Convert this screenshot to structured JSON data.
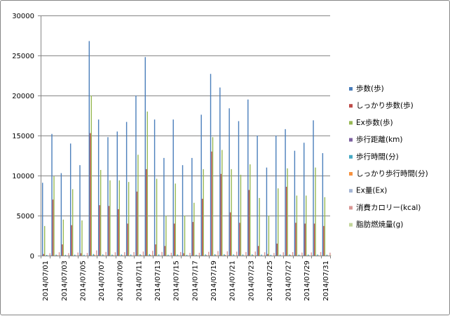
{
  "chart_data": {
    "type": "bar",
    "ylim": [
      0,
      30000
    ],
    "yticks": [
      0,
      5000,
      10000,
      15000,
      20000,
      25000,
      30000
    ],
    "grid": true,
    "legend_position": "right",
    "categories": [
      "2014/07/01",
      "2014/07/02",
      "2014/07/03",
      "2014/07/04",
      "2014/07/05",
      "2014/07/06",
      "2014/07/07",
      "2014/07/08",
      "2014/07/09",
      "2014/07/10",
      "2014/07/11",
      "2014/07/12",
      "2014/07/13",
      "2014/07/14",
      "2014/07/15",
      "2014/07/16",
      "2014/07/17",
      "2014/07/18",
      "2014/07/19",
      "2014/07/20",
      "2014/07/21",
      "2014/07/22",
      "2014/07/23",
      "2014/07/24",
      "2014/07/25",
      "2014/07/26",
      "2014/07/27",
      "2014/07/28",
      "2014/07/29",
      "2014/07/30",
      "2014/07/31"
    ],
    "xtick_labels": [
      "2014/07/01",
      "2014/07/03",
      "2014/07/05",
      "2014/07/07",
      "2014/07/09",
      "2014/07/11",
      "2014/07/13",
      "2014/07/15",
      "2014/07/17",
      "2014/07/19",
      "2014/07/21",
      "2014/07/23",
      "2014/07/25",
      "2014/07/27",
      "2014/07/29",
      "2014/07/31"
    ],
    "series": [
      {
        "name": "歩数(歩)",
        "color": "#4a7ebb",
        "values": [
          9100,
          15200,
          10300,
          14000,
          11300,
          26800,
          17000,
          14800,
          15500,
          16700,
          20000,
          24800,
          17000,
          12200,
          17000,
          11300,
          12200,
          17600,
          22700,
          21000,
          18400,
          16800,
          19500,
          15000,
          11000,
          15000,
          15800,
          13100,
          14100,
          16900,
          12800
        ]
      },
      {
        "name": "しっかり歩数(歩)",
        "color": "#be4b48",
        "values": [
          200,
          7000,
          1400,
          3800,
          300,
          15300,
          6300,
          6200,
          5800,
          4000,
          8000,
          10800,
          1400,
          1200,
          4000,
          300,
          4200,
          7100,
          13000,
          10200,
          5400,
          4100,
          8200,
          1200,
          200,
          1500,
          8600,
          4100,
          4000,
          4000,
          3700
        ]
      },
      {
        "name": "Ex歩数(歩)",
        "color": "#98b954",
        "values": [
          3700,
          9900,
          4500,
          8300,
          4400,
          20000,
          10700,
          9400,
          9400,
          9200,
          12600,
          18000,
          9600,
          5000,
          9000,
          5000,
          6600,
          10800,
          14800,
          13200,
          10800,
          10100,
          11400,
          7200,
          5000,
          8400,
          10900,
          7500,
          7500,
          11000,
          7300
        ]
      },
      {
        "name": "歩行距離(km)",
        "color": "#7d60a0",
        "values": [
          7,
          11,
          8,
          10,
          9,
          19,
          12,
          11,
          11,
          12,
          14,
          18,
          12,
          9,
          12,
          8,
          9,
          13,
          16,
          15,
          13,
          12,
          14,
          11,
          8,
          11,
          11,
          10,
          10,
          12,
          9
        ]
      },
      {
        "name": "歩行時間(分)",
        "color": "#46aac4",
        "values": [
          90,
          130,
          100,
          120,
          110,
          200,
          150,
          130,
          140,
          140,
          170,
          190,
          150,
          110,
          140,
          100,
          110,
          150,
          180,
          170,
          150,
          140,
          160,
          130,
          100,
          130,
          140,
          120,
          130,
          140,
          120
        ]
      },
      {
        "name": "しっかり歩行時間(分)",
        "color": "#f69240",
        "values": [
          2,
          60,
          12,
          34,
          3,
          120,
          55,
          53,
          50,
          34,
          70,
          90,
          12,
          10,
          34,
          3,
          36,
          60,
          110,
          90,
          46,
          35,
          70,
          10,
          2,
          13,
          75,
          35,
          34,
          34,
          32
        ]
      },
      {
        "name": "Ex量(Ex)",
        "color": "#a5b6d4",
        "values": [
          1,
          3,
          1,
          2,
          1,
          6,
          3,
          3,
          3,
          2,
          4,
          5,
          2,
          1,
          2,
          1,
          2,
          3,
          5,
          4,
          3,
          2,
          4,
          2,
          1,
          2,
          3,
          2,
          2,
          2,
          2
        ]
      },
      {
        "name": "消費カロリー(kcal)",
        "color": "#d99694",
        "values": [
          300,
          420,
          310,
          390,
          330,
          650,
          460,
          420,
          430,
          440,
          510,
          600,
          460,
          360,
          450,
          340,
          360,
          470,
          570,
          540,
          490,
          450,
          510,
          420,
          330,
          420,
          440,
          380,
          400,
          450,
          370
        ]
      },
      {
        "name": "脂肪燃焼量(g)",
        "color": "#c3d69b",
        "values": [
          40,
          55,
          40,
          50,
          45,
          90,
          60,
          55,
          58,
          58,
          70,
          80,
          60,
          48,
          60,
          45,
          48,
          63,
          78,
          72,
          65,
          60,
          68,
          55,
          45,
          55,
          58,
          52,
          53,
          60,
          50
        ]
      }
    ]
  }
}
